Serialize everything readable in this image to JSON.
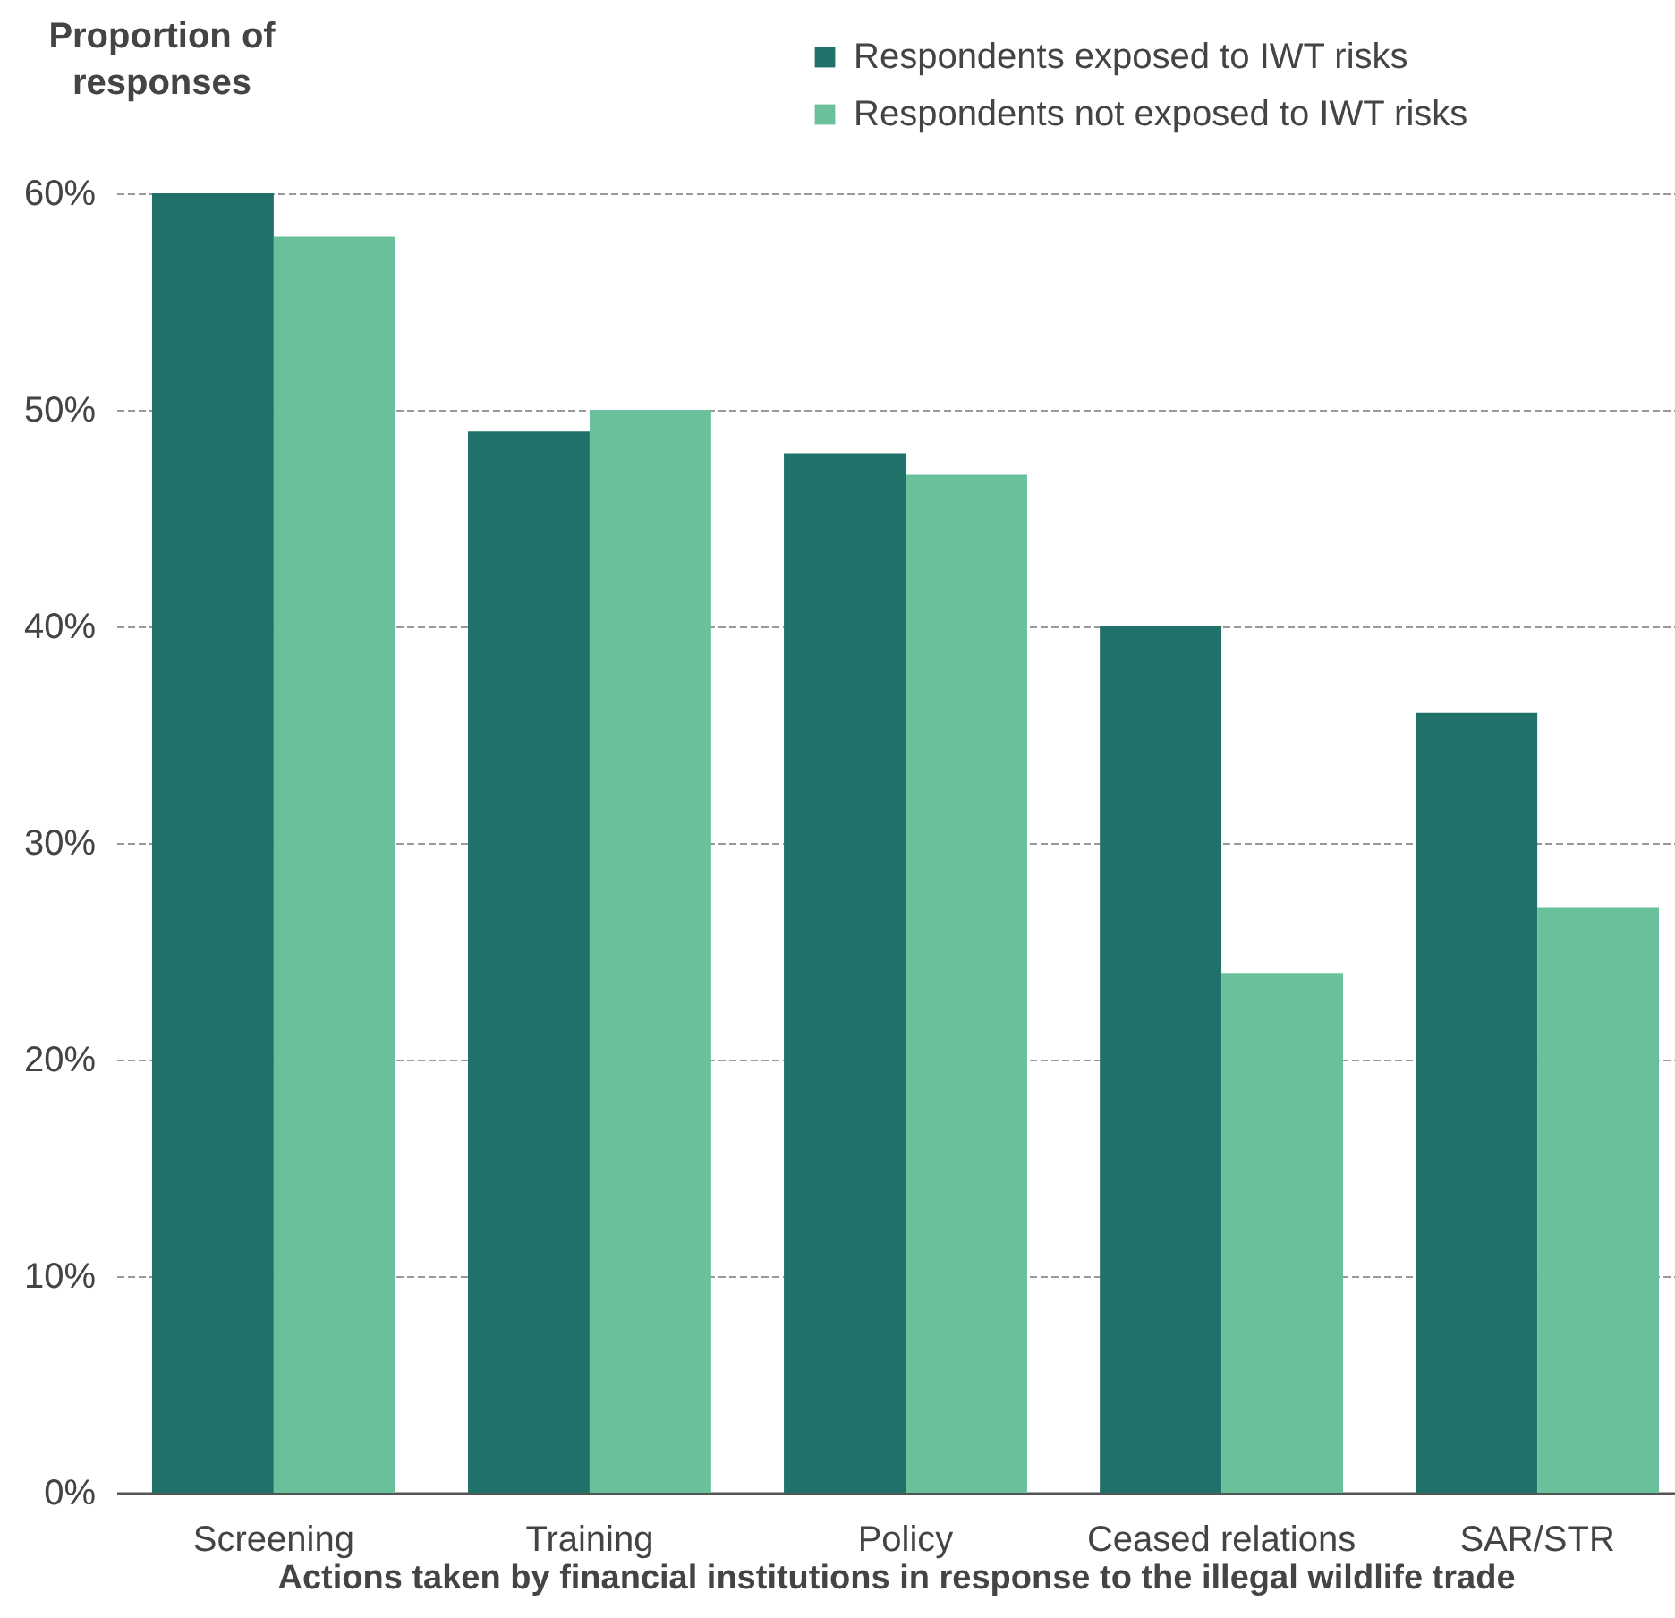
{
  "chart_data": {
    "type": "bar",
    "xlabel": "Actions taken by financial institutions in response to the illegal wildlife trade",
    "ylabel": "Proportion of responses",
    "categories": [
      "Screening",
      "Training",
      "Policy",
      "Ceased relations",
      "SAR/STR"
    ],
    "series": [
      {
        "name": "Respondents exposed to IWT risks",
        "color": "#20716a",
        "values": [
          60,
          49,
          48,
          40,
          36
        ]
      },
      {
        "name": "Respondents not exposed to IWT risks",
        "color": "#69c09a",
        "values": [
          58,
          50,
          47,
          24,
          27
        ]
      }
    ],
    "ylim": [
      0,
      60
    ],
    "yticks": [
      {
        "value": 0,
        "label": "0%"
      },
      {
        "value": 10,
        "label": "10%"
      },
      {
        "value": 20,
        "label": "20%"
      },
      {
        "value": 30,
        "label": "30%"
      },
      {
        "value": 40,
        "label": "40%"
      },
      {
        "value": 50,
        "label": "50%"
      },
      {
        "value": 60,
        "label": "60%"
      }
    ],
    "grid": "y",
    "legend": "top"
  }
}
